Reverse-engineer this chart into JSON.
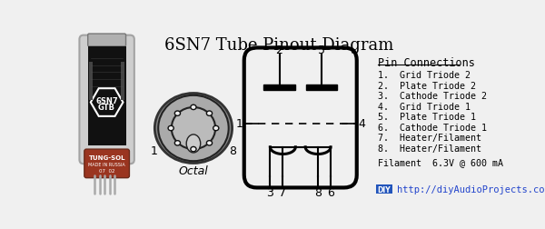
{
  "title": "6SN7 Tube Pinout Diagram",
  "background_color": "#f0f0f0",
  "pin_connections_title": "Pin Connections",
  "pin_connections": [
    "1.  Grid Triode 2",
    "2.  Plate Triode 2",
    "3.  Cathode Triode 2",
    "4.  Grid Triode 1",
    "5.  Plate Triode 1",
    "6.  Cathode Triode 1",
    "7.  Heater/Filament",
    "8.  Heater/Filament"
  ],
  "filament_note": "Filament  6.3V @ 600 mA",
  "website": "http://diyAudioProjects.com",
  "website_label": "DIY",
  "octal_label": "Octal",
  "pin_labels_bottom": [
    "3",
    "7",
    "8",
    "6"
  ],
  "pin_labels_top": [
    "2",
    "5"
  ],
  "pin_labels_side_left": "1",
  "pin_labels_side_right": "4",
  "pin_label_octal_1": "1",
  "pin_label_octal_8": "8"
}
